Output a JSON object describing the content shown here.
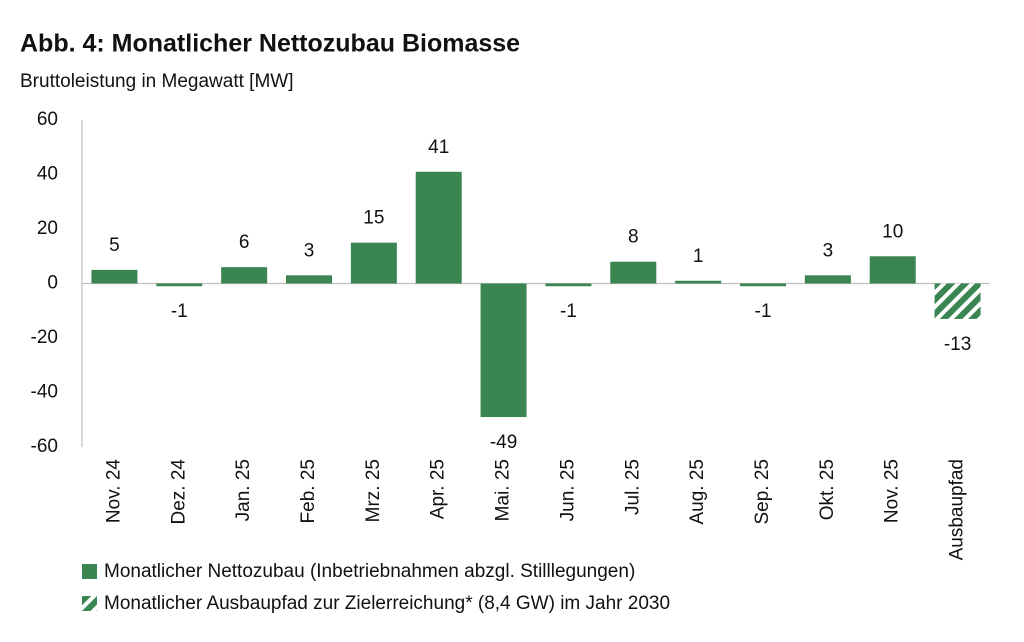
{
  "chart_data": {
    "type": "bar",
    "title": "Abb. 4: Monatlicher Nettozubau Biomasse",
    "subtitle": "Bruttoleistung in Megawatt [MW]",
    "categories": [
      "Nov. 24",
      "Dez. 24",
      "Jan. 25",
      "Feb. 25",
      "Mrz. 25",
      "Apr. 25",
      "Mai. 25",
      "Jun. 25",
      "Jul. 25",
      "Aug. 25",
      "Sep. 25",
      "Okt. 25",
      "Nov. 25",
      "Ausbaupfad"
    ],
    "series": [
      {
        "name": "Monatlicher Nettozubau (Inbetriebnahmen abzgl. Stilllegungen)",
        "color": "#3b8552",
        "values": [
          5,
          -1,
          6,
          3,
          15,
          41,
          -49,
          -1,
          8,
          1,
          -1,
          3,
          10,
          null
        ]
      },
      {
        "name": "Monatlicher Ausbaupfad zur Zielerreichung* (8,4 GW) im Jahr 2030",
        "color": "#3b8552",
        "pattern": "hatch",
        "values": [
          null,
          null,
          null,
          null,
          null,
          null,
          null,
          null,
          null,
          null,
          null,
          null,
          null,
          -13
        ]
      }
    ],
    "ylim": [
      -60,
      60
    ],
    "yticks": [
      -60,
      -40,
      -20,
      0,
      20,
      40,
      60
    ]
  }
}
